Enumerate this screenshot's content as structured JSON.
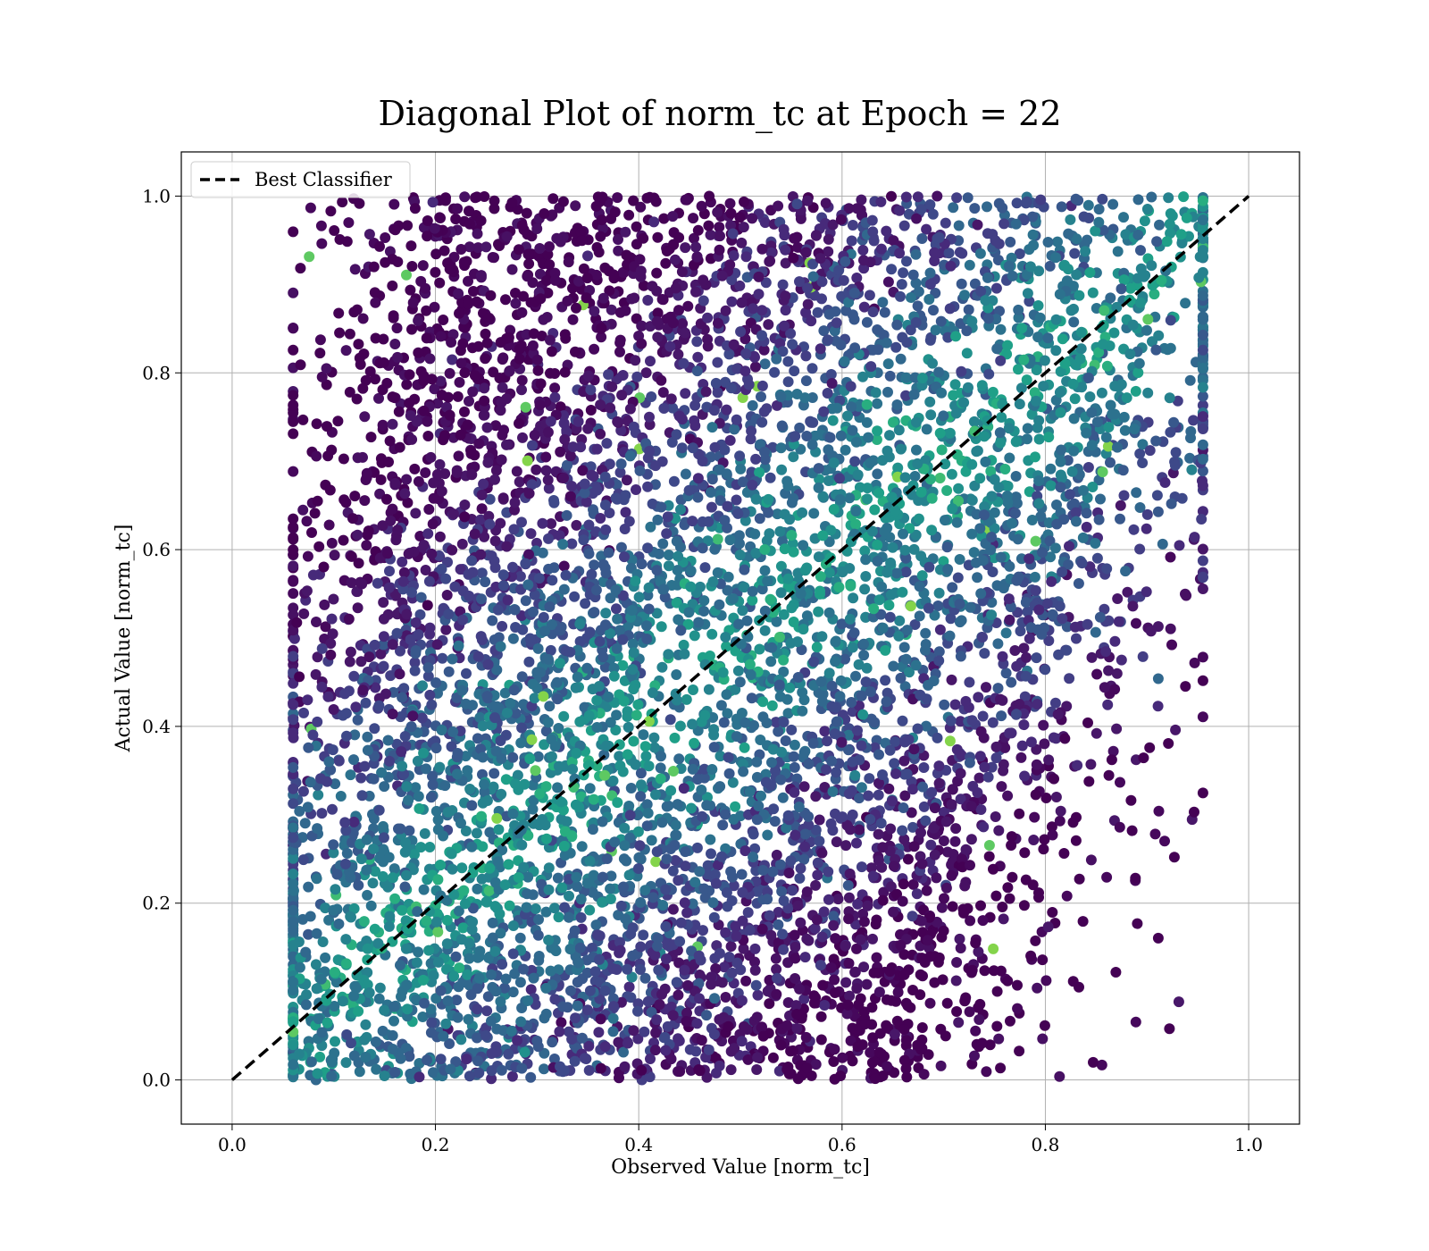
{
  "chart_data": {
    "type": "scatter",
    "title": "Diagonal Plot of norm_tc at Epoch = 22",
    "xlabel": "Observed Value [norm_tc]",
    "ylabel": "Actual Value [norm_tc]",
    "xlim": [
      -0.05,
      1.05
    ],
    "ylim": [
      -0.05,
      1.05
    ],
    "xticks": [
      "0.0",
      "0.2",
      "0.4",
      "0.6",
      "0.8",
      "1.0"
    ],
    "yticks": [
      "0.0",
      "0.2",
      "0.4",
      "0.6",
      "0.8",
      "1.0"
    ],
    "grid": true,
    "legend_position": "top-left",
    "colormap": "viridis",
    "series": [
      {
        "name": "Best Classifier",
        "kind": "line",
        "style": "dashed",
        "color": "#000000",
        "x": [
          0.0,
          1.0
        ],
        "y": [
          0.0,
          1.0
        ]
      }
    ],
    "scatter_description": {
      "actual_value_range": [
        0.0,
        1.0
      ],
      "observed_min_at_actual_0": 0.07,
      "observed_max_at_actual_0": 0.65,
      "observed_min_at_actual_1": 0.2,
      "observed_max_at_actual_1": 0.95,
      "sparse_tail_left_at_actual_1": 0.1,
      "sparse_tail_right_at_actual_0": 0.9
    }
  }
}
